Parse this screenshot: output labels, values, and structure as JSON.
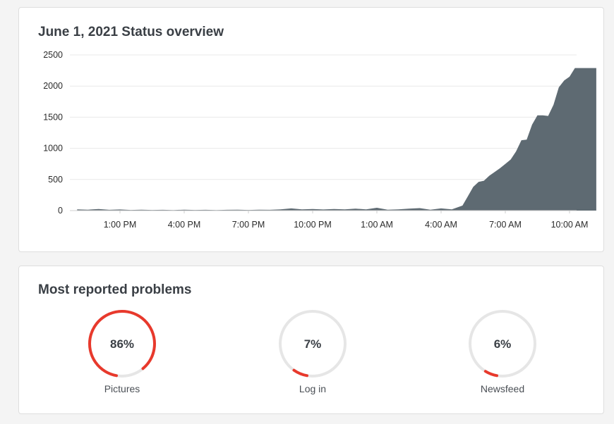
{
  "overview": {
    "title": "June 1, 2021 Status overview"
  },
  "chart_data": {
    "type": "area",
    "title": "June 1, 2021 Status overview",
    "xlabel": "",
    "ylabel": "",
    "ylim": [
      0,
      2500
    ],
    "yticks": [
      0,
      500,
      1000,
      1500,
      2000,
      2500
    ],
    "xtick_labels": [
      "1:00 PM",
      "4:00 PM",
      "7:00 PM",
      "10:00 PM",
      "1:00 AM",
      "4:00 AM",
      "7:00 AM",
      "10:00 AM"
    ],
    "x_hours": [
      11.0,
      11.5,
      12.0,
      12.5,
      13.0,
      13.5,
      14.0,
      14.5,
      15.0,
      15.5,
      16.0,
      16.5,
      17.0,
      17.5,
      18.0,
      18.5,
      19.0,
      19.5,
      20.0,
      20.5,
      21.0,
      21.5,
      22.0,
      22.5,
      23.0,
      23.5,
      24.0,
      24.5,
      25.0,
      25.5,
      26.0,
      26.5,
      27.0,
      27.5,
      28.0,
      28.5,
      29.0,
      29.25,
      29.5,
      29.75,
      30.0,
      30.25,
      30.5,
      30.75,
      31.0,
      31.25,
      31.5,
      31.75,
      32.0,
      32.25,
      32.5,
      32.75,
      33.0,
      33.25,
      33.5,
      33.75,
      34.0,
      34.25,
      34.5,
      34.75,
      35.0,
      35.25
    ],
    "values": [
      20,
      15,
      25,
      12,
      18,
      10,
      15,
      10,
      12,
      8,
      15,
      10,
      12,
      8,
      12,
      15,
      10,
      15,
      12,
      20,
      35,
      20,
      25,
      18,
      25,
      20,
      30,
      20,
      45,
      15,
      20,
      30,
      40,
      15,
      35,
      20,
      80,
      230,
      380,
      460,
      480,
      560,
      620,
      680,
      750,
      820,
      950,
      1130,
      1140,
      1380,
      1530,
      1530,
      1520,
      1700,
      1980,
      2090,
      2150,
      2290,
      2290,
      2290,
      2290,
      2290
    ],
    "series": [
      {
        "values_ref": "values"
      }
    ],
    "fill_color": "#5e6a72",
    "grid": true
  },
  "problems": {
    "title": "Most reported problems",
    "items": [
      {
        "label": "Pictures",
        "percent": 86,
        "percent_text": "86%"
      },
      {
        "label": "Log in",
        "percent": 7,
        "percent_text": "7%"
      },
      {
        "label": "Newsfeed",
        "percent": 6,
        "percent_text": "6%"
      }
    ],
    "accent_color": "#e8392c",
    "track_color": "#e6e6e6"
  }
}
